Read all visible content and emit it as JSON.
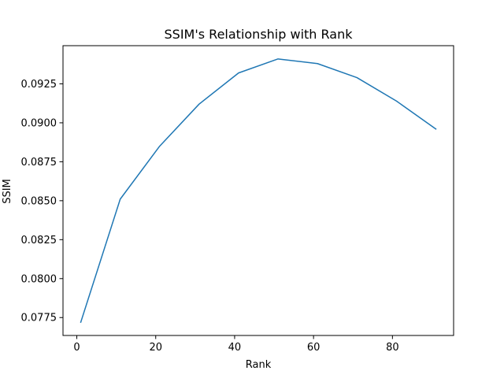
{
  "chart_data": {
    "type": "line",
    "title": "SSIM's Relationship with Rank",
    "xlabel": "Rank",
    "ylabel": "SSIM",
    "xlim": [
      -3.5,
      95.5
    ],
    "ylim": [
      0.07635,
      0.09495
    ],
    "xticks": [
      0,
      20,
      40,
      60,
      80
    ],
    "yticks": [
      0.0775,
      0.08,
      0.0825,
      0.085,
      0.0875,
      0.09,
      0.0925
    ],
    "xtick_labels": [
      "0",
      "20",
      "40",
      "60",
      "80"
    ],
    "ytick_labels": [
      "0.0775",
      "0.0800",
      "0.0825",
      "0.0850",
      "0.0875",
      "0.0900",
      "0.0925"
    ],
    "grid": false,
    "legend": "none",
    "line_color": "#1f77b4",
    "series": [
      {
        "x": [
          1,
          11,
          21,
          31,
          41,
          51,
          61,
          71,
          81,
          91
        ],
        "values": [
          0.0772,
          0.0851,
          0.0885,
          0.0912,
          0.0932,
          0.0941,
          0.0938,
          0.0929,
          0.0914,
          0.0896
        ]
      }
    ]
  }
}
